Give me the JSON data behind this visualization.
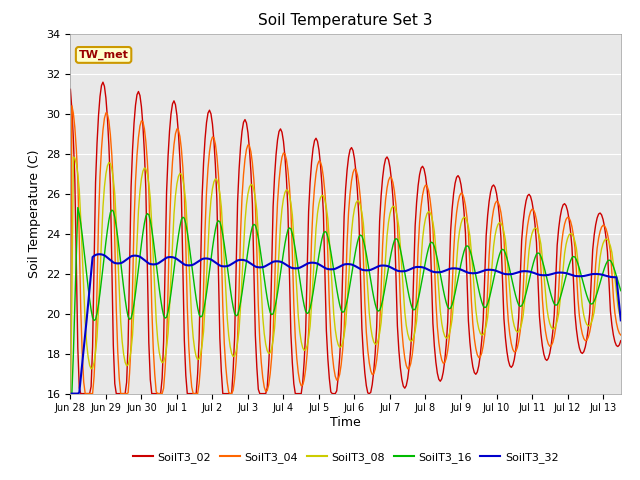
{
  "title": "Soil Temperature Set 3",
  "xlabel": "Time",
  "ylabel": "Soil Temperature (C)",
  "ylim": [
    16,
    34
  ],
  "yticks": [
    16,
    18,
    20,
    22,
    24,
    26,
    28,
    30,
    32,
    34
  ],
  "annotation_text": "TW_met",
  "annotation_color": "#990000",
  "annotation_bg": "#ffffcc",
  "annotation_border": "#cc9900",
  "bg_color": "#e8e8e8",
  "series_colors": {
    "SoilT3_02": "#cc0000",
    "SoilT3_04": "#ff6600",
    "SoilT3_08": "#cccc00",
    "SoilT3_16": "#00bb00",
    "SoilT3_32": "#0000cc"
  },
  "x_tick_labels": [
    "Jun 28",
    "Jun 29",
    "Jun 30",
    "Jul 1",
    "Jul 2",
    "Jul 3",
    "Jul 4",
    "Jul 5",
    "Jul 6",
    "Jul 7",
    "Jul 8",
    "Jul 9",
    "Jul 10",
    "Jul 11",
    "Jul 12",
    "Jul 13"
  ],
  "figsize": [
    6.4,
    4.8
  ],
  "dpi": 100
}
